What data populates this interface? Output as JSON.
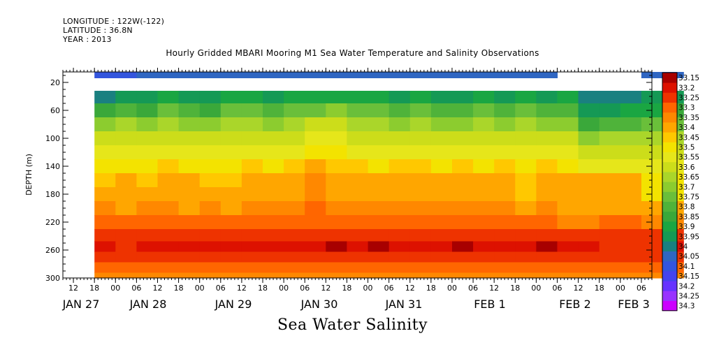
{
  "header": {
    "longitude": "LONGITUDE : 122W(-122)",
    "latitude": "LATITUDE : 36.8N",
    "year": "YEAR : 2013"
  },
  "title": "Hourly Gridded MBARI Mooring M1 Sea Water Temperature and Salinity Observations",
  "caption": "Sea Water Salinity",
  "chart_data": {
    "type": "heatmap",
    "title": "Hourly Gridded MBARI Mooring M1 Sea Water Temperature and Salinity Observations",
    "xlabel": "",
    "ylabel": "DEPTH (m)",
    "caption": "Sea Water Salinity",
    "x_axis": {
      "unit": "hour",
      "range": [
        "2013-01-27T09:00",
        "2013-02-03T09:00"
      ],
      "hour_ticks": [
        "12",
        "18",
        "00",
        "06",
        "12",
        "18",
        "00",
        "06",
        "12",
        "18",
        "00",
        "06",
        "12",
        "18",
        "00",
        "06",
        "12",
        "18",
        "00",
        "06",
        "12",
        "18",
        "00",
        "06",
        "12",
        "18",
        "00",
        "06"
      ],
      "day_labels": [
        "JAN 27",
        "JAN 28",
        "JAN 29",
        "JAN 30",
        "JAN 31",
        "FEB  1",
        "FEB  2",
        "FEB  3"
      ]
    },
    "y_axis": {
      "range": [
        300,
        5
      ],
      "inverted": true,
      "ticks": [
        20,
        60,
        100,
        140,
        180,
        220,
        260,
        300
      ]
    },
    "colorbar": {
      "levels": [
        "33.15",
        "33.2",
        "33.25",
        "33.3",
        "33.35",
        "33.4",
        "33.45",
        "33.5",
        "33.55",
        "33.6",
        "33.65",
        "33.7",
        "33.75",
        "33.8",
        "33.85",
        "33.9",
        "33.95",
        "34",
        "34.05",
        "34.1",
        "34.15",
        "34.2",
        "34.25",
        "34.3"
      ],
      "colors": [
        "#cc00ff",
        "#9933ff",
        "#6633ff",
        "#4444ee",
        "#3355dd",
        "#2f66c2",
        "#1a8080",
        "#159955",
        "#1aa642",
        "#3aa83a",
        "#4fb33a",
        "#6abf3a",
        "#8ccc2f",
        "#aad62a",
        "#ccdd1a",
        "#e6e61a",
        "#f3e300",
        "#ffc800",
        "#ffa600",
        "#ff8800",
        "#ff6600",
        "#ee3300",
        "#dd1100",
        "#a80000"
      ]
    },
    "data_start": "2013-01-27T18:00",
    "series": [
      {
        "depth": 10,
        "values": [
          33.36,
          33.36,
          33.4,
          33.4,
          33.4,
          33.4,
          33.4,
          33.4,
          33.4,
          33.4,
          33.4,
          33.4,
          33.4,
          33.4,
          33.4,
          33.4,
          33.4,
          33.4,
          33.4,
          33.4,
          33.4,
          33.4,
          null,
          null,
          null,
          null,
          33.4,
          33.4
        ]
      },
      {
        "depth": 40,
        "values": [
          33.45,
          33.5,
          33.5,
          33.55,
          33.5,
          33.5,
          33.55,
          33.55,
          33.5,
          33.55,
          33.55,
          33.55,
          33.55,
          33.55,
          33.5,
          33.55,
          33.5,
          33.5,
          33.55,
          33.5,
          33.55,
          33.5,
          33.55,
          33.45,
          33.45,
          33.45,
          33.5,
          33.5
        ]
      },
      {
        "depth": 60,
        "values": [
          33.6,
          33.65,
          33.6,
          33.7,
          33.65,
          33.6,
          33.7,
          33.7,
          33.65,
          33.7,
          33.7,
          33.75,
          33.7,
          33.7,
          33.65,
          33.7,
          33.65,
          33.65,
          33.7,
          33.65,
          33.7,
          33.65,
          33.65,
          33.5,
          33.5,
          33.55,
          33.55,
          33.6
        ]
      },
      {
        "depth": 80,
        "values": [
          33.75,
          33.8,
          33.75,
          33.8,
          33.75,
          33.75,
          33.8,
          33.8,
          33.75,
          33.8,
          33.85,
          33.85,
          33.8,
          33.8,
          33.75,
          33.8,
          33.75,
          33.75,
          33.8,
          33.75,
          33.8,
          33.75,
          33.75,
          33.6,
          33.65,
          33.65,
          33.7,
          33.7
        ]
      },
      {
        "depth": 100,
        "values": [
          33.85,
          33.85,
          33.85,
          33.85,
          33.85,
          33.85,
          33.85,
          33.85,
          33.85,
          33.85,
          33.9,
          33.9,
          33.85,
          33.85,
          33.85,
          33.85,
          33.85,
          33.85,
          33.85,
          33.85,
          33.85,
          33.85,
          33.85,
          33.75,
          33.8,
          33.8,
          33.8,
          33.8
        ]
      },
      {
        "depth": 120,
        "values": [
          33.9,
          33.9,
          33.9,
          33.9,
          33.9,
          33.9,
          33.9,
          33.9,
          33.9,
          33.9,
          33.95,
          33.95,
          33.9,
          33.9,
          33.9,
          33.9,
          33.9,
          33.9,
          33.9,
          33.9,
          33.9,
          33.9,
          33.9,
          33.85,
          33.85,
          33.85,
          33.85,
          33.85
        ]
      },
      {
        "depth": 140,
        "values": [
          33.95,
          33.95,
          33.95,
          34.0,
          33.95,
          33.95,
          33.95,
          34.0,
          33.95,
          34.0,
          34.05,
          34.0,
          34.0,
          33.95,
          34.0,
          34.0,
          33.95,
          34.0,
          33.95,
          34.0,
          33.95,
          34.0,
          33.95,
          33.9,
          33.9,
          33.9,
          33.9,
          33.9
        ]
      },
      {
        "depth": 160,
        "values": [
          34.0,
          34.05,
          34.0,
          34.05,
          34.05,
          34.0,
          34.0,
          34.05,
          34.05,
          34.05,
          34.1,
          34.05,
          34.05,
          34.05,
          34.05,
          34.05,
          34.05,
          34.05,
          34.05,
          34.05,
          34.0,
          34.05,
          34.05,
          34.05,
          34.05,
          34.05,
          33.95,
          33.95
        ]
      },
      {
        "depth": 180,
        "values": [
          34.05,
          34.05,
          34.05,
          34.05,
          34.05,
          34.05,
          34.05,
          34.05,
          34.05,
          34.05,
          34.1,
          34.05,
          34.05,
          34.05,
          34.05,
          34.05,
          34.05,
          34.05,
          34.05,
          34.05,
          34.0,
          34.05,
          34.05,
          34.05,
          34.05,
          34.05,
          33.95,
          33.95
        ]
      },
      {
        "depth": 200,
        "values": [
          34.1,
          34.05,
          34.1,
          34.1,
          34.05,
          34.1,
          34.05,
          34.1,
          34.1,
          34.1,
          34.15,
          34.1,
          34.1,
          34.1,
          34.1,
          34.1,
          34.1,
          34.1,
          34.1,
          34.1,
          34.05,
          34.1,
          34.05,
          34.05,
          34.05,
          34.05,
          34.05,
          34.05
        ]
      },
      {
        "depth": 220,
        "values": [
          34.15,
          34.15,
          34.15,
          34.15,
          34.15,
          34.15,
          34.15,
          34.15,
          34.15,
          34.15,
          34.15,
          34.15,
          34.15,
          34.15,
          34.15,
          34.15,
          34.15,
          34.15,
          34.15,
          34.15,
          34.15,
          34.15,
          34.1,
          34.1,
          34.15,
          34.15,
          34.1,
          34.1
        ]
      },
      {
        "depth": 240,
        "values": [
          34.2,
          34.2,
          34.2,
          34.2,
          34.2,
          34.2,
          34.2,
          34.2,
          34.2,
          34.2,
          34.2,
          34.2,
          34.2,
          34.2,
          34.2,
          34.2,
          34.2,
          34.2,
          34.2,
          34.2,
          34.2,
          34.2,
          34.2,
          34.2,
          34.2,
          34.2,
          34.2,
          34.2
        ]
      },
      {
        "depth": 255,
        "values": [
          34.25,
          34.2,
          34.25,
          34.25,
          34.25,
          34.25,
          34.25,
          34.25,
          34.25,
          34.25,
          34.25,
          34.3,
          34.25,
          34.3,
          34.25,
          34.25,
          34.25,
          34.3,
          34.25,
          34.25,
          34.25,
          34.3,
          34.25,
          34.25,
          34.2,
          34.2,
          34.2,
          34.25
        ]
      },
      {
        "depth": 270,
        "values": [
          34.2,
          34.2,
          34.2,
          34.2,
          34.2,
          34.2,
          34.2,
          34.2,
          34.2,
          34.2,
          34.2,
          34.2,
          34.2,
          34.2,
          34.2,
          34.2,
          34.2,
          34.2,
          34.2,
          34.2,
          34.2,
          34.2,
          34.2,
          34.2,
          34.2,
          34.2,
          34.2,
          34.2
        ]
      },
      {
        "depth": 285,
        "values": [
          34.15,
          34.15,
          34.15,
          34.15,
          34.15,
          34.15,
          34.15,
          34.15,
          34.15,
          34.15,
          34.15,
          34.15,
          34.15,
          34.15,
          34.15,
          34.15,
          34.15,
          34.15,
          34.15,
          34.15,
          34.15,
          34.15,
          34.15,
          34.15,
          34.15,
          34.15,
          34.15,
          34.15
        ]
      },
      {
        "depth": 300,
        "values": [
          34.1,
          34.1,
          34.1,
          34.1,
          34.1,
          34.1,
          34.1,
          34.1,
          34.1,
          34.1,
          34.1,
          34.1,
          34.1,
          34.1,
          34.1,
          34.1,
          34.1,
          34.1,
          34.1,
          34.1,
          34.1,
          34.1,
          34.1,
          34.1,
          34.1,
          34.1,
          34.1,
          34.1
        ]
      }
    ],
    "grid": false,
    "legend": "right colorbar"
  }
}
